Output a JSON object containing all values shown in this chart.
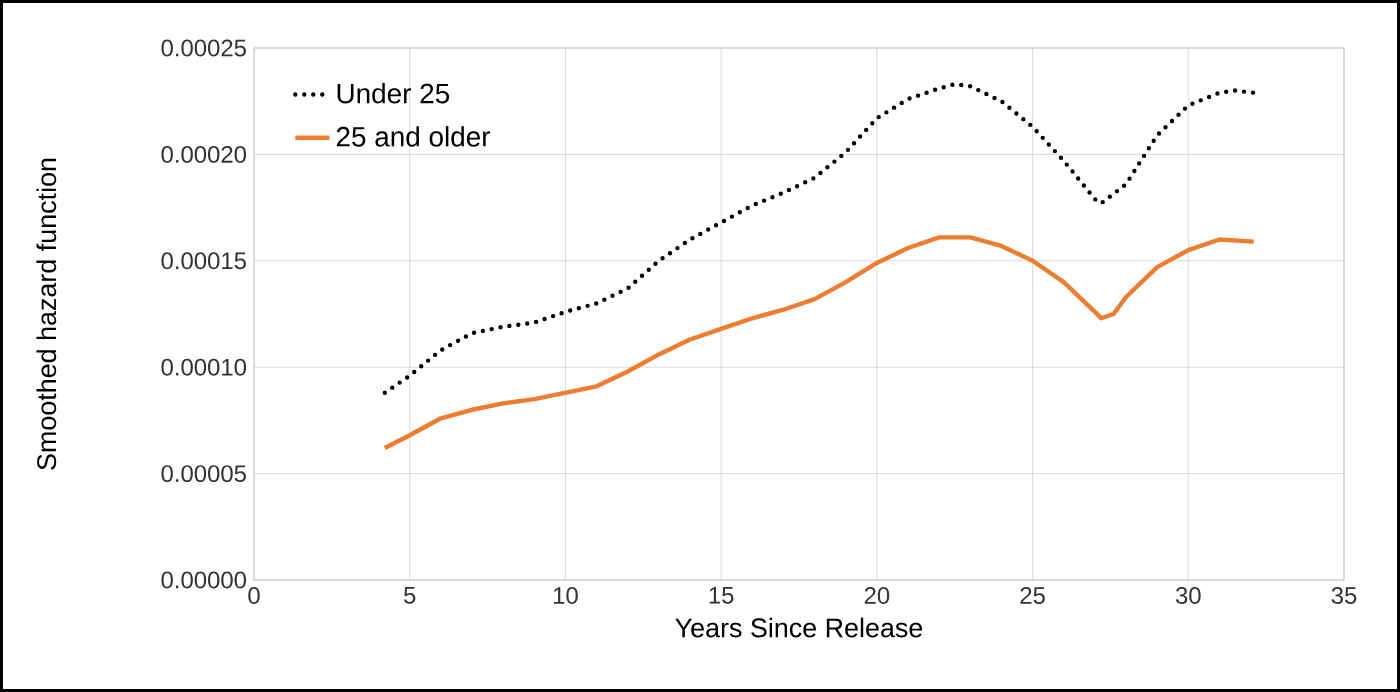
{
  "chart_data": {
    "type": "line",
    "xlabel": "Years Since Release",
    "ylabel": "Smoothed hazard function",
    "xlim": [
      0,
      35
    ],
    "xticks": [
      0,
      5,
      10,
      15,
      20,
      25,
      30,
      35
    ],
    "ylim": [
      0,
      0.00025
    ],
    "yticks": [
      {
        "value": 0,
        "label": "0.00000"
      },
      {
        "value": 5e-05,
        "label": "0.00005"
      },
      {
        "value": 0.0001,
        "label": "0.00010"
      },
      {
        "value": 0.00015,
        "label": "0.00015"
      },
      {
        "value": 0.0002,
        "label": "0.00020"
      },
      {
        "value": 0.00025,
        "label": "0.00025"
      }
    ],
    "grid": true,
    "legend": "top left",
    "marker": "none",
    "series": [
      {
        "name": "Under 25",
        "color": "#000000",
        "line_style": "dotted",
        "x": [
          4.2,
          5,
          6,
          7,
          8,
          9,
          10,
          11,
          12,
          13,
          14,
          15,
          16,
          17,
          18,
          19,
          20,
          21,
          22,
          22.5,
          23,
          24,
          25,
          26,
          27,
          27.2,
          28,
          29,
          30,
          31,
          31.5,
          32.1
        ],
        "values": [
          8.8e-05,
          9.6e-05,
          0.000108,
          0.000116,
          0.000119,
          0.000121,
          0.000126,
          0.00013,
          0.000137,
          0.00015,
          0.00016,
          0.000168,
          0.000176,
          0.000182,
          0.000189,
          0.000201,
          0.000217,
          0.000226,
          0.000231,
          0.000233,
          0.000232,
          0.000225,
          0.000213,
          0.000197,
          0.000179,
          0.000177,
          0.000186,
          0.000209,
          0.000223,
          0.000229,
          0.00023,
          0.000229
        ]
      },
      {
        "name": "25 and older",
        "color": "#ed7d31",
        "line_style": "solid",
        "x": [
          4.2,
          5,
          6,
          7,
          8,
          9,
          10,
          11,
          12,
          13,
          14,
          15,
          16,
          17,
          18,
          19,
          20,
          21,
          22,
          23,
          24,
          25,
          26,
          27,
          27.2,
          27.6,
          28,
          29,
          30,
          31,
          32.1
        ],
        "values": [
          6.2e-05,
          6.8e-05,
          7.6e-05,
          8e-05,
          8.3e-05,
          8.5e-05,
          8.8e-05,
          9.1e-05,
          9.8e-05,
          0.000106,
          0.000113,
          0.000118,
          0.000123,
          0.000127,
          0.000132,
          0.00014,
          0.000149,
          0.000156,
          0.000161,
          0.000161,
          0.000157,
          0.00015,
          0.00014,
          0.000126,
          0.000123,
          0.000125,
          0.000133,
          0.000147,
          0.000155,
          0.00016,
          0.000159
        ]
      }
    ]
  }
}
